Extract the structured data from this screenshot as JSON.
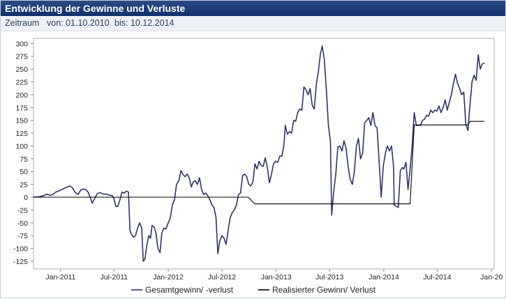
{
  "panel": {
    "title": "Entwicklung der Gewinne und Verluste",
    "period_label": "Zeitraum",
    "from_label": "von: 01.10.2010",
    "to_label": "bis: 10.12.2014"
  },
  "chart_data": {
    "type": "line",
    "title": "",
    "xlabel": "",
    "ylabel": "",
    "ylim": [
      -140,
      310
    ],
    "y_ticks": [
      300,
      275,
      250,
      225,
      200,
      175,
      150,
      125,
      100,
      75,
      50,
      25,
      0,
      -25,
      -50,
      -75,
      -100,
      -125
    ],
    "x_ticks": [
      {
        "label": "Jan-2011",
        "date": "2011-01-01"
      },
      {
        "label": "Jul-2011",
        "date": "2011-07-01"
      },
      {
        "label": "Jan-2012",
        "date": "2012-01-01"
      },
      {
        "label": "Jul-2012",
        "date": "2012-07-01"
      },
      {
        "label": "Jan-2013",
        "date": "2013-01-01"
      },
      {
        "label": "Jul-2013",
        "date": "2013-07-01"
      },
      {
        "label": "Jan-2014",
        "date": "2014-01-01"
      },
      {
        "label": "Jul-2014",
        "date": "2014-07-01"
      },
      {
        "label": "Jan-20",
        "date": "2015-01-01"
      }
    ],
    "xlim": [
      "2010-10-01",
      "2015-01-10"
    ],
    "grid": false,
    "legend": "bottom",
    "series": [
      {
        "name": "Gesamtgewinn/ -verlust",
        "color": "#2b3566",
        "points": [
          [
            "2010-10-01",
            0
          ],
          [
            "2010-10-20",
            1
          ],
          [
            "2010-11-05",
            3
          ],
          [
            "2010-11-15",
            6
          ],
          [
            "2010-11-25",
            4
          ],
          [
            "2010-12-05",
            5
          ],
          [
            "2010-12-15",
            10
          ],
          [
            "2010-12-25",
            12
          ],
          [
            "2011-01-05",
            15
          ],
          [
            "2011-01-20",
            19
          ],
          [
            "2011-02-01",
            22
          ],
          [
            "2011-02-10",
            18
          ],
          [
            "2011-02-20",
            9
          ],
          [
            "2011-03-01",
            5
          ],
          [
            "2011-03-10",
            14
          ],
          [
            "2011-03-20",
            16
          ],
          [
            "2011-03-28",
            15
          ],
          [
            "2011-04-05",
            9
          ],
          [
            "2011-04-12",
            -1
          ],
          [
            "2011-04-18",
            -12
          ],
          [
            "2011-04-25",
            -4
          ],
          [
            "2011-05-05",
            7
          ],
          [
            "2011-05-15",
            9
          ],
          [
            "2011-05-25",
            6
          ],
          [
            "2011-06-05",
            6
          ],
          [
            "2011-06-15",
            4
          ],
          [
            "2011-06-25",
            3
          ],
          [
            "2011-07-01",
            -3
          ],
          [
            "2011-07-07",
            -18
          ],
          [
            "2011-07-14",
            -18
          ],
          [
            "2011-07-21",
            -5
          ],
          [
            "2011-07-28",
            10
          ],
          [
            "2011-08-05",
            8
          ],
          [
            "2011-08-12",
            12
          ],
          [
            "2011-08-19",
            10
          ],
          [
            "2011-08-24",
            -65
          ],
          [
            "2011-08-29",
            -72
          ],
          [
            "2011-09-05",
            -78
          ],
          [
            "2011-09-12",
            -75
          ],
          [
            "2011-09-19",
            -60
          ],
          [
            "2011-09-26",
            -50
          ],
          [
            "2011-10-03",
            -60
          ],
          [
            "2011-10-08",
            -125
          ],
          [
            "2011-10-14",
            -120
          ],
          [
            "2011-10-20",
            -95
          ],
          [
            "2011-10-27",
            -75
          ],
          [
            "2011-11-02",
            -80
          ],
          [
            "2011-11-07",
            -55
          ],
          [
            "2011-11-14",
            -58
          ],
          [
            "2011-11-20",
            -70
          ],
          [
            "2011-11-27",
            -100
          ],
          [
            "2011-12-04",
            -108
          ],
          [
            "2011-12-10",
            -70
          ],
          [
            "2011-12-17",
            -60
          ],
          [
            "2011-12-24",
            -62
          ],
          [
            "2012-01-01",
            -50
          ],
          [
            "2012-01-08",
            -40
          ],
          [
            "2012-01-15",
            -15
          ],
          [
            "2012-01-22",
            -5
          ],
          [
            "2012-01-29",
            25
          ],
          [
            "2012-02-06",
            32
          ],
          [
            "2012-02-13",
            52
          ],
          [
            "2012-02-20",
            44
          ],
          [
            "2012-02-27",
            40
          ],
          [
            "2012-03-05",
            45
          ],
          [
            "2012-03-12",
            38
          ],
          [
            "2012-03-19",
            20
          ],
          [
            "2012-03-26",
            30
          ],
          [
            "2012-04-02",
            32
          ],
          [
            "2012-04-09",
            25
          ],
          [
            "2012-04-16",
            38
          ],
          [
            "2012-04-23",
            15
          ],
          [
            "2012-04-30",
            5
          ],
          [
            "2012-05-07",
            8
          ],
          [
            "2012-05-14",
            3
          ],
          [
            "2012-05-21",
            -5
          ],
          [
            "2012-05-28",
            -15
          ],
          [
            "2012-06-04",
            -20
          ],
          [
            "2012-06-11",
            -40
          ],
          [
            "2012-06-17",
            -110
          ],
          [
            "2012-06-24",
            -85
          ],
          [
            "2012-07-01",
            -75
          ],
          [
            "2012-07-08",
            -80
          ],
          [
            "2012-07-15",
            -92
          ],
          [
            "2012-07-22",
            -65
          ],
          [
            "2012-07-29",
            -40
          ],
          [
            "2012-08-05",
            -30
          ],
          [
            "2012-08-12",
            -25
          ],
          [
            "2012-08-19",
            -15
          ],
          [
            "2012-08-26",
            5
          ],
          [
            "2012-09-02",
            8
          ],
          [
            "2012-09-09",
            42
          ],
          [
            "2012-09-16",
            45
          ],
          [
            "2012-09-23",
            40
          ],
          [
            "2012-09-30",
            25
          ],
          [
            "2012-10-07",
            22
          ],
          [
            "2012-10-14",
            30
          ],
          [
            "2012-10-21",
            65
          ],
          [
            "2012-10-28",
            55
          ],
          [
            "2012-11-04",
            70
          ],
          [
            "2012-11-11",
            62
          ],
          [
            "2012-11-18",
            60
          ],
          [
            "2012-11-25",
            77
          ],
          [
            "2012-12-02",
            58
          ],
          [
            "2012-12-09",
            28
          ],
          [
            "2012-12-16",
            45
          ],
          [
            "2012-12-23",
            65
          ],
          [
            "2012-12-30",
            70
          ],
          [
            "2013-01-06",
            68
          ],
          [
            "2013-01-13",
            80
          ],
          [
            "2013-01-20",
            80
          ],
          [
            "2013-01-27",
            100
          ],
          [
            "2013-02-01",
            140
          ],
          [
            "2013-02-08",
            123
          ],
          [
            "2013-02-15",
            128
          ],
          [
            "2013-02-22",
            125
          ],
          [
            "2013-03-01",
            150
          ],
          [
            "2013-03-08",
            148
          ],
          [
            "2013-03-15",
            165
          ],
          [
            "2013-03-22",
            172
          ],
          [
            "2013-03-29",
            170
          ],
          [
            "2013-04-05",
            215
          ],
          [
            "2013-04-12",
            210
          ],
          [
            "2013-04-19",
            200
          ],
          [
            "2013-04-26",
            212
          ],
          [
            "2013-05-03",
            180
          ],
          [
            "2013-05-10",
            172
          ],
          [
            "2013-05-17",
            220
          ],
          [
            "2013-05-24",
            245
          ],
          [
            "2013-05-31",
            280
          ],
          [
            "2013-06-06",
            295
          ],
          [
            "2013-06-13",
            270
          ],
          [
            "2013-06-20",
            210
          ],
          [
            "2013-06-27",
            140
          ],
          [
            "2013-07-04",
            108
          ],
          [
            "2013-07-08",
            -35
          ],
          [
            "2013-07-15",
            10
          ],
          [
            "2013-07-22",
            45
          ],
          [
            "2013-07-29",
            98
          ],
          [
            "2013-08-05",
            100
          ],
          [
            "2013-08-12",
            90
          ],
          [
            "2013-08-19",
            110
          ],
          [
            "2013-08-26",
            95
          ],
          [
            "2013-09-02",
            60
          ],
          [
            "2013-09-09",
            35
          ],
          [
            "2013-09-16",
            25
          ],
          [
            "2013-09-23",
            50
          ],
          [
            "2013-09-30",
            100
          ],
          [
            "2013-10-07",
            115
          ],
          [
            "2013-10-14",
            75
          ],
          [
            "2013-10-21",
            85
          ],
          [
            "2013-10-28",
            145
          ],
          [
            "2013-11-04",
            150
          ],
          [
            "2013-11-11",
            155
          ],
          [
            "2013-11-18",
            140
          ],
          [
            "2013-11-25",
            165
          ],
          [
            "2013-12-02",
            140
          ],
          [
            "2013-12-09",
            135
          ],
          [
            "2013-12-16",
            70
          ],
          [
            "2013-12-23",
            0
          ],
          [
            "2013-12-30",
            60
          ],
          [
            "2014-01-06",
            85
          ],
          [
            "2014-01-13",
            100
          ],
          [
            "2014-01-20",
            90
          ],
          [
            "2014-01-27",
            100
          ],
          [
            "2014-02-03",
            60
          ],
          [
            "2014-02-05",
            -15
          ],
          [
            "2014-02-12",
            -18
          ],
          [
            "2014-02-19",
            -20
          ],
          [
            "2014-02-26",
            52
          ],
          [
            "2014-03-05",
            58
          ],
          [
            "2014-03-10",
            55
          ],
          [
            "2014-03-17",
            68
          ],
          [
            "2014-03-24",
            15
          ],
          [
            "2014-03-31",
            55
          ],
          [
            "2014-04-07",
            100
          ],
          [
            "2014-04-14",
            165
          ],
          [
            "2014-04-21",
            140
          ],
          [
            "2014-04-28",
            140
          ],
          [
            "2014-05-05",
            140
          ],
          [
            "2014-05-12",
            150
          ],
          [
            "2014-05-19",
            152
          ],
          [
            "2014-05-26",
            160
          ],
          [
            "2014-06-02",
            158
          ],
          [
            "2014-06-09",
            170
          ],
          [
            "2014-06-16",
            165
          ],
          [
            "2014-06-23",
            170
          ],
          [
            "2014-06-30",
            168
          ],
          [
            "2014-07-07",
            178
          ],
          [
            "2014-07-14",
            165
          ],
          [
            "2014-07-21",
            175
          ],
          [
            "2014-07-28",
            190
          ],
          [
            "2014-08-04",
            170
          ],
          [
            "2014-08-11",
            185
          ],
          [
            "2014-08-18",
            200
          ],
          [
            "2014-08-25",
            222
          ],
          [
            "2014-09-01",
            240
          ],
          [
            "2014-09-08",
            222
          ],
          [
            "2014-09-15",
            212
          ],
          [
            "2014-09-22",
            200
          ],
          [
            "2014-09-29",
            205
          ],
          [
            "2014-10-06",
            142
          ],
          [
            "2014-10-13",
            130
          ],
          [
            "2014-10-20",
            180
          ],
          [
            "2014-10-27",
            225
          ],
          [
            "2014-11-03",
            238
          ],
          [
            "2014-11-10",
            228
          ],
          [
            "2014-11-17",
            278
          ],
          [
            "2014-11-24",
            250
          ],
          [
            "2014-12-01",
            260
          ],
          [
            "2014-12-08",
            262
          ]
        ]
      },
      {
        "name": "Realisierter Gewinn/ Verlust",
        "color": "#000000",
        "points": [
          [
            "2010-10-01",
            0
          ],
          [
            "2012-09-28",
            0
          ],
          [
            "2012-10-20",
            -13
          ],
          [
            "2014-03-31",
            -13
          ],
          [
            "2014-04-14",
            141
          ],
          [
            "2014-10-13",
            141
          ],
          [
            "2014-10-20",
            148
          ],
          [
            "2014-12-08",
            148
          ]
        ]
      }
    ]
  }
}
